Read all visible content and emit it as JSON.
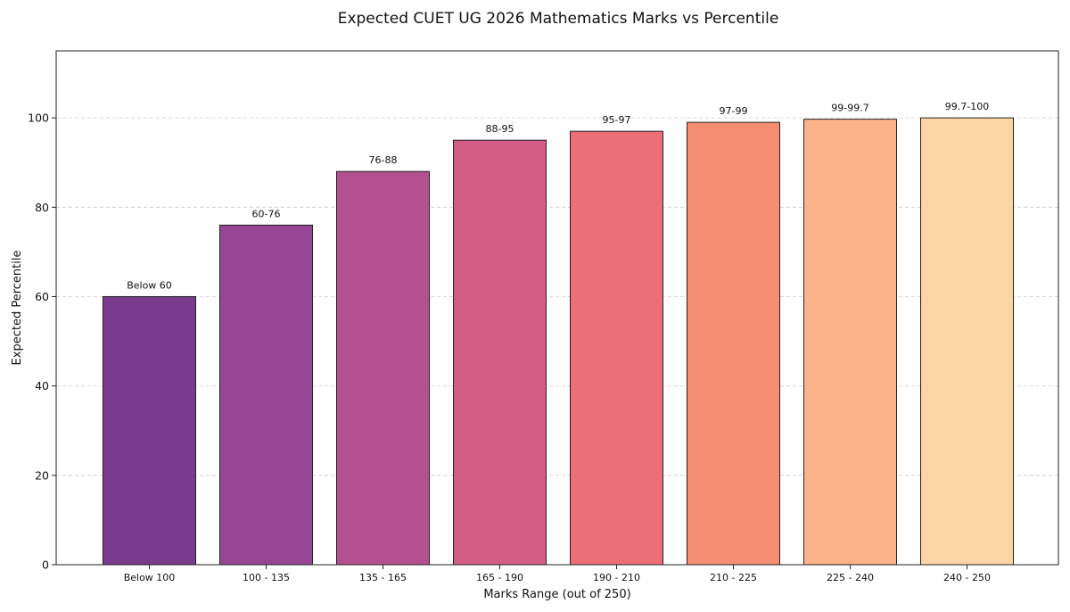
{
  "chart_data": {
    "type": "bar",
    "title": "Expected CUET UG 2026 Mathematics Marks vs Percentile",
    "xlabel": "Marks Range (out of 250)",
    "ylabel": "Expected Percentile",
    "ylim": [
      0,
      115
    ],
    "yticks": [
      0,
      20,
      40,
      60,
      80,
      100
    ],
    "grid": "y-dashed",
    "categories": [
      "Below 100",
      "100 - 135",
      "135 - 165",
      "165 - 190",
      "190 - 210",
      "210 - 225",
      "225 - 240",
      "240 - 250"
    ],
    "values": [
      60,
      76,
      88,
      95,
      97,
      99,
      99.7,
      100
    ],
    "data_labels": [
      "Below 60",
      "60-76",
      "76-88",
      "88-95",
      "95-97",
      "97-99",
      "99-99.7",
      "99.7-100"
    ],
    "colors": [
      "#783b8e",
      "#974595",
      "#b4508f",
      "#d45d86",
      "#ec6f78",
      "#f68e71",
      "#fcb288",
      "#fcd5a4"
    ]
  }
}
